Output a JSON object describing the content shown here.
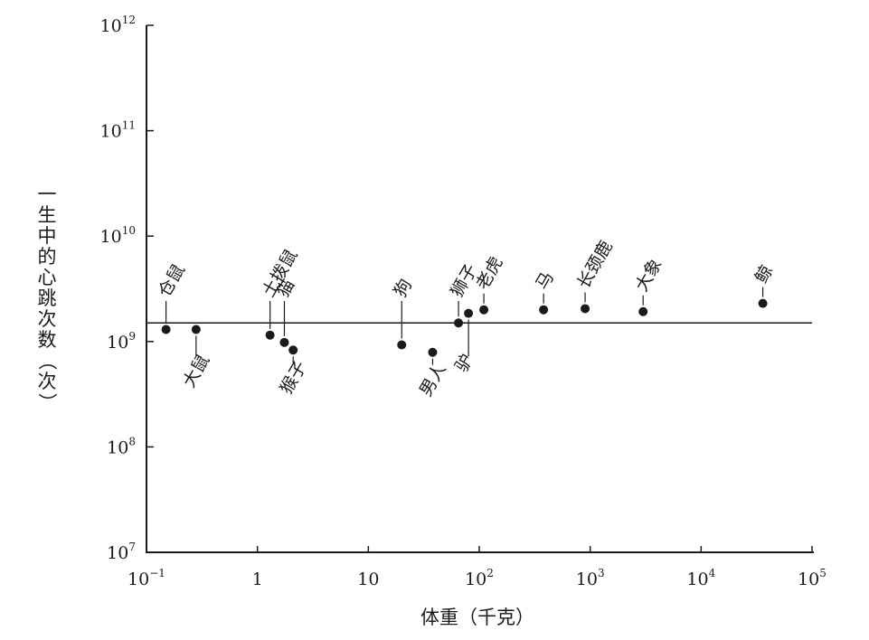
{
  "chart_data": {
    "type": "scatter",
    "title": "",
    "xlabel": "体重（千克）",
    "ylabel": "一生中的心跳次数（次）",
    "x_scale": "log",
    "y_scale": "log",
    "xlim": [
      0.1,
      100000
    ],
    "ylim": [
      10000000,
      1000000000000
    ],
    "grid": false,
    "x_ticks": [
      {
        "value": 0.1,
        "base": "10",
        "exp": "−1"
      },
      {
        "value": 1,
        "base": "1",
        "exp": ""
      },
      {
        "value": 10,
        "base": "10",
        "exp": ""
      },
      {
        "value": 100,
        "base": "10",
        "exp": "2"
      },
      {
        "value": 1000,
        "base": "10",
        "exp": "3"
      },
      {
        "value": 10000,
        "base": "10",
        "exp": "4"
      },
      {
        "value": 100000,
        "base": "10",
        "exp": "5"
      }
    ],
    "y_ticks": [
      {
        "value": 10000000,
        "base": "10",
        "exp": "7"
      },
      {
        "value": 100000000,
        "base": "10",
        "exp": "8"
      },
      {
        "value": 1000000000,
        "base": "10",
        "exp": "9"
      },
      {
        "value": 10000000000,
        "base": "10",
        "exp": "10"
      },
      {
        "value": 100000000000,
        "base": "10",
        "exp": "11"
      },
      {
        "value": 1000000000000,
        "base": "10",
        "exp": "12"
      }
    ],
    "reference_line_y": 1500000000,
    "points": [
      {
        "label": "仓鼠",
        "x": 0.15,
        "y": 1300000000,
        "side": "above"
      },
      {
        "label": "大鼠",
        "x": 0.28,
        "y": 1300000000,
        "side": "below"
      },
      {
        "label": "土拨鼠",
        "x": 1.3,
        "y": 1150000000,
        "side": "above"
      },
      {
        "label": "猫",
        "x": 1.75,
        "y": 980000000,
        "side": "above"
      },
      {
        "label": "猴子",
        "x": 2.1,
        "y": 830000000,
        "side": "below"
      },
      {
        "label": "狗",
        "x": 20,
        "y": 930000000,
        "side": "above"
      },
      {
        "label": "男人",
        "x": 38,
        "y": 790000000,
        "side": "below"
      },
      {
        "label": "狮子",
        "x": 65,
        "y": 1500000000,
        "side": "above"
      },
      {
        "label": "驴",
        "x": 80,
        "y": 1850000000,
        "side": "below"
      },
      {
        "label": "老虎",
        "x": 110,
        "y": 2000000000,
        "side": "above"
      },
      {
        "label": "马",
        "x": 380,
        "y": 2000000000,
        "side": "above"
      },
      {
        "label": "长颈鹿",
        "x": 900,
        "y": 2050000000,
        "side": "above"
      },
      {
        "label": "大象",
        "x": 3000,
        "y": 1920000000,
        "side": "above"
      },
      {
        "label": "鲸",
        "x": 36000,
        "y": 2300000000,
        "side": "above"
      }
    ]
  }
}
